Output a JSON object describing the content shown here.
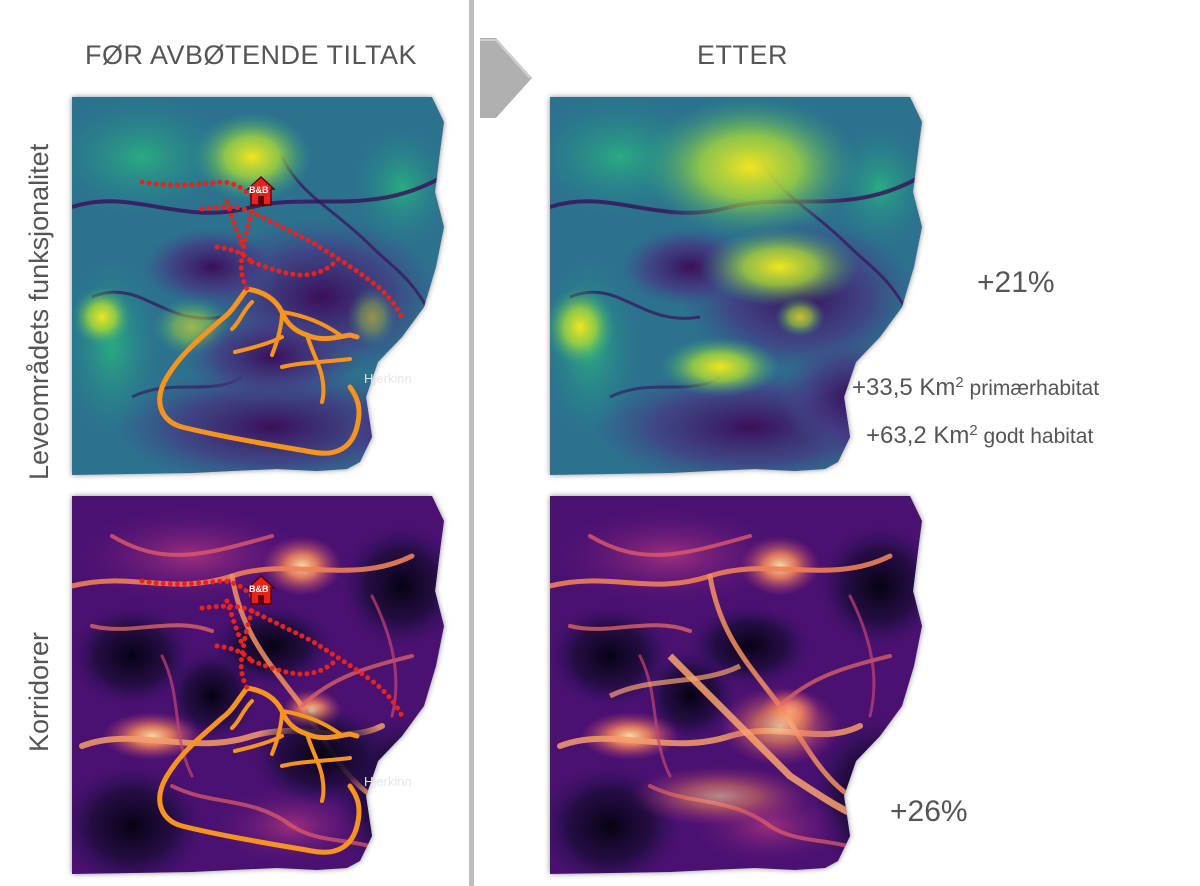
{
  "header": {
    "before_title": "FØR AVBØTENDE TILTAK",
    "after_title": "ETTER"
  },
  "rows": {
    "row1_label": "Leveområdets funksjonalitet",
    "row2_label": "Korridorer"
  },
  "map_labels": {
    "place_name": "Hjerkinn",
    "bnb_label": "B&B"
  },
  "stats": {
    "functionality_change": "+21%",
    "primary_habitat_value": "+33,5 Km",
    "primary_habitat_unit_sup": "2",
    "primary_habitat_label": " primærhabitat",
    "good_habitat_value": "+63,2 Km",
    "good_habitat_unit_sup": "2",
    "good_habitat_label": " godt habitat",
    "corridor_change": "+26%"
  },
  "colors": {
    "viridis_dark": "#3b0f58",
    "viridis_mid": "#21918c",
    "viridis_bright": "#dfe318",
    "magma_dark": "#0a0418",
    "magma_mid": "#8c2981",
    "magma_bright": "#fcb77a",
    "road_orange": "#f7941d",
    "trail_red": "#e8231d",
    "arrow_gray": "#b0b0b0"
  },
  "icons": {
    "house": "house-icon",
    "arrow": "arrow-right-icon"
  }
}
